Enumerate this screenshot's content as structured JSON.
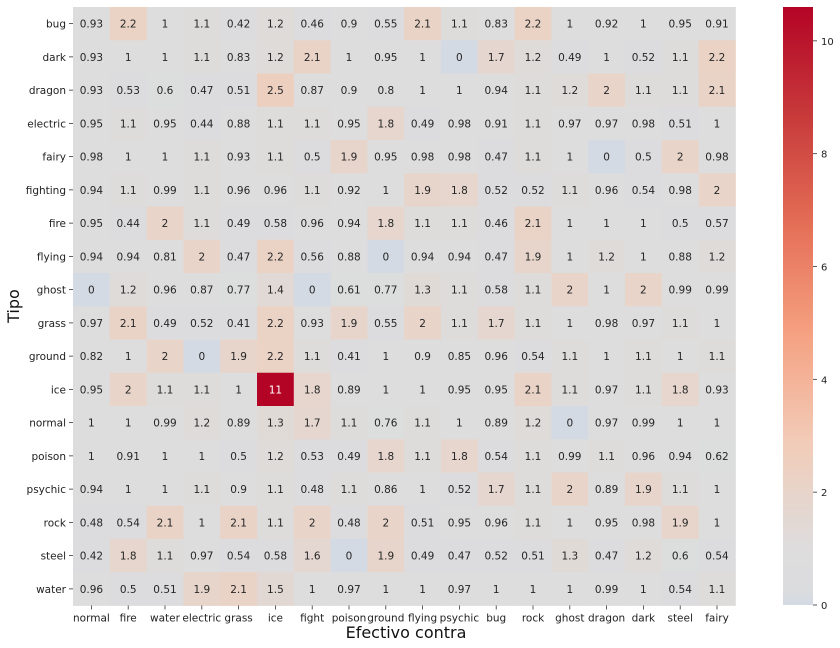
{
  "chart_data": {
    "type": "heatmap",
    "xlabel": "Efectivo contra",
    "ylabel": "Tipo",
    "x_categories": [
      "normal",
      "fire",
      "water",
      "electric",
      "grass",
      "ice",
      "fight",
      "poison",
      "ground",
      "flying",
      "psychic",
      "bug",
      "rock",
      "ghost",
      "dragon",
      "dark",
      "steel",
      "fairy"
    ],
    "y_categories": [
      "bug",
      "dark",
      "dragon",
      "electric",
      "fairy",
      "fighting",
      "fire",
      "flying",
      "ghost",
      "grass",
      "ground",
      "ice",
      "normal",
      "poison",
      "psychic",
      "rock",
      "steel",
      "water"
    ],
    "values": [
      [
        0.93,
        2.2,
        1,
        1.1,
        0.42,
        1.2,
        0.46,
        0.9,
        0.55,
        2.1,
        1.1,
        0.83,
        2.2,
        1,
        0.92,
        1,
        0.95,
        0.91
      ],
      [
        0.93,
        1,
        1,
        1.1,
        0.83,
        1.2,
        2.1,
        1,
        0.95,
        1,
        0,
        1.7,
        1.2,
        0.49,
        1,
        0.52,
        1.1,
        2.2
      ],
      [
        0.93,
        0.53,
        0.6,
        0.47,
        0.51,
        2.5,
        0.87,
        0.9,
        0.8,
        1,
        1,
        0.94,
        1.1,
        1.2,
        2,
        1.1,
        1.1,
        2.1
      ],
      [
        0.95,
        1.1,
        0.95,
        0.44,
        0.88,
        1.1,
        1.1,
        0.95,
        1.8,
        0.49,
        0.98,
        0.91,
        1.1,
        0.97,
        0.97,
        0.98,
        0.51,
        1
      ],
      [
        0.98,
        1,
        1,
        1.1,
        0.93,
        1.1,
        0.5,
        1.9,
        0.95,
        0.98,
        0.98,
        0.47,
        1.1,
        1,
        0,
        0.5,
        2,
        0.98
      ],
      [
        0.94,
        1.1,
        0.99,
        1.1,
        0.96,
        0.96,
        1.1,
        0.92,
        1,
        1.9,
        1.8,
        0.52,
        0.52,
        1.1,
        0.96,
        0.54,
        0.98,
        2
      ],
      [
        0.95,
        0.44,
        2,
        1.1,
        0.49,
        0.58,
        0.96,
        0.94,
        1.8,
        1.1,
        1.1,
        0.46,
        2.1,
        1,
        1,
        1,
        0.5,
        0.57
      ],
      [
        0.94,
        0.94,
        0.81,
        2,
        0.47,
        2.2,
        0.56,
        0.88,
        0,
        0.94,
        0.94,
        0.47,
        1.9,
        1,
        1.2,
        1,
        0.88,
        1.2
      ],
      [
        0,
        1.2,
        0.96,
        0.87,
        0.77,
        1.4,
        0,
        0.61,
        0.77,
        1.3,
        1.1,
        0.58,
        1.1,
        2,
        1,
        2,
        0.99,
        0.99
      ],
      [
        0.97,
        2.1,
        0.49,
        0.52,
        0.41,
        2.2,
        0.93,
        1.9,
        0.55,
        2,
        1.1,
        1.7,
        1.1,
        1,
        0.98,
        0.97,
        1.1,
        1
      ],
      [
        0.82,
        1,
        2,
        0,
        1.9,
        2.2,
        1.1,
        0.41,
        1,
        0.9,
        0.85,
        0.96,
        0.54,
        1.1,
        1,
        1.1,
        1,
        1.1
      ],
      [
        0.95,
        2,
        1.1,
        1.1,
        1,
        11,
        1.8,
        0.89,
        1,
        1,
        0.95,
        0.95,
        2.1,
        1.1,
        0.97,
        1.1,
        1.8,
        0.93
      ],
      [
        1,
        1,
        0.99,
        1.2,
        0.89,
        1.3,
        1.7,
        1.1,
        0.76,
        1.1,
        1,
        0.89,
        1.2,
        0,
        0.97,
        0.99,
        1,
        1
      ],
      [
        1,
        0.91,
        1,
        1,
        0.5,
        1.2,
        0.53,
        0.49,
        1.8,
        1.1,
        1.8,
        0.54,
        1.1,
        0.99,
        1.1,
        0.96,
        0.94,
        0.62
      ],
      [
        0.94,
        1,
        1,
        1.1,
        0.9,
        1.1,
        0.48,
        1.1,
        0.86,
        1,
        0.52,
        1.7,
        1.1,
        2,
        0.89,
        1.9,
        1.1,
        1
      ],
      [
        0.48,
        0.54,
        2.1,
        1,
        2.1,
        1.1,
        2,
        0.48,
        2,
        0.51,
        0.95,
        0.96,
        1.1,
        1,
        0.95,
        0.98,
        1.9,
        1
      ],
      [
        0.42,
        1.8,
        1.1,
        0.97,
        0.54,
        0.58,
        1.6,
        0,
        1.9,
        0.49,
        0.47,
        0.52,
        0.51,
        1.3,
        0.47,
        1.2,
        0.6,
        0.54
      ],
      [
        0.96,
        0.5,
        0.51,
        1.9,
        2.1,
        1.5,
        1,
        0.97,
        1,
        1,
        0.97,
        1,
        1,
        1,
        0.99,
        1,
        0.54,
        1.1
      ]
    ],
    "colormap": "coolwarm",
    "colorbar": {
      "vmin": 0,
      "vmax": 10.6,
      "ticks": [
        0,
        2,
        4,
        6,
        8,
        10
      ]
    },
    "annotations": true
  }
}
